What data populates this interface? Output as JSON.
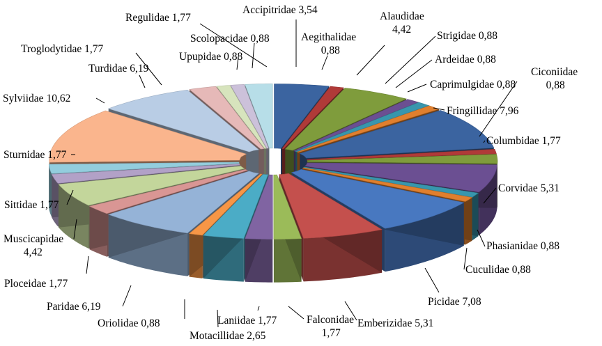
{
  "chart_data": {
    "type": "pie",
    "style": "3d-exploded",
    "title": "",
    "start_angle_deg": -90,
    "direction": "clockwise",
    "slices": [
      {
        "label": "Accipitridae",
        "value": "3,54",
        "v": 3.54,
        "color": "#3b64a0"
      },
      {
        "label": "Aegithalidae",
        "value": "0,88",
        "v": 0.88,
        "color": "#b03a38"
      },
      {
        "label": "Alaudidae",
        "value": "4,42",
        "v": 4.42,
        "color": "#7f9c3c"
      },
      {
        "label": "Strigidae",
        "value": "0,88",
        "v": 0.88,
        "color": "#6b4f92"
      },
      {
        "label": "Ardeidae",
        "value": "0,88",
        "v": 0.88,
        "color": "#3896ad"
      },
      {
        "label": "Caprimulgidae",
        "value": "0,88",
        "v": 0.88,
        "color": "#e07f2e"
      },
      {
        "label": "Fringillidae",
        "value": "7,96",
        "v": 7.96,
        "color": "#3b64a0"
      },
      {
        "label": "Ciconiidae",
        "value": "0,88",
        "v": 0.88,
        "color": "#b03a38"
      },
      {
        "label": "Columbidae",
        "value": "1,77",
        "v": 1.77,
        "color": "#7f9c3c"
      },
      {
        "label": "Corvidae",
        "value": "5,31",
        "v": 5.31,
        "color": "#6b4f92"
      },
      {
        "label": "Phasianidae",
        "value": "0,88",
        "v": 0.88,
        "color": "#3896ad"
      },
      {
        "label": "Cuculidae",
        "value": "0,88",
        "v": 0.88,
        "color": "#e07f2e"
      },
      {
        "label": "Picidae",
        "value": "7,08",
        "v": 7.08,
        "color": "#4878c0"
      },
      {
        "label": "Emberizidae",
        "value": "5,31",
        "v": 5.31,
        "color": "#c4504d"
      },
      {
        "label": "Falconidae",
        "value": "1,77",
        "v": 1.77,
        "color": "#9bbb59"
      },
      {
        "label": "Laniidae",
        "value": "1,77",
        "v": 1.77,
        "color": "#8064a2"
      },
      {
        "label": "Motacillidae",
        "value": "2,65",
        "v": 2.65,
        "color": "#4bacc6"
      },
      {
        "label": "Oriolidae",
        "value": "0,88",
        "v": 0.88,
        "color": "#f79646"
      },
      {
        "label": "Paridae",
        "value": "6,19",
        "v": 6.19,
        "color": "#95b3d7"
      },
      {
        "label": "Ploceidae",
        "value": "1,77",
        "v": 1.77,
        "color": "#d99694"
      },
      {
        "label": "Muscicapidae",
        "value": "4,42",
        "v": 4.42,
        "color": "#c3d69b"
      },
      {
        "label": "Sittidae",
        "value": "1,77",
        "v": 1.77,
        "color": "#b2a1c7"
      },
      {
        "label": "Sturnidae",
        "value": "1,77",
        "v": 1.77,
        "color": "#93cddd"
      },
      {
        "label": "Sylviidae",
        "value": "10,62",
        "v": 10.62,
        "color": "#fab58d"
      },
      {
        "label": "Turdidae",
        "value": "6,19",
        "v": 6.19,
        "color": "#b9cde5"
      },
      {
        "label": "Troglodytidae",
        "value": "1,77",
        "v": 1.77,
        "color": "#e6b9b8"
      },
      {
        "label": "Upupidae",
        "value": "0,88",
        "v": 0.88,
        "color": "#d7e4bd"
      },
      {
        "label": "Scolopacidae",
        "value": "0,88",
        "v": 0.88,
        "color": "#ccc1da"
      },
      {
        "label": "Regulidae",
        "value": "1,77",
        "v": 1.77,
        "color": "#b7dee8"
      }
    ]
  }
}
